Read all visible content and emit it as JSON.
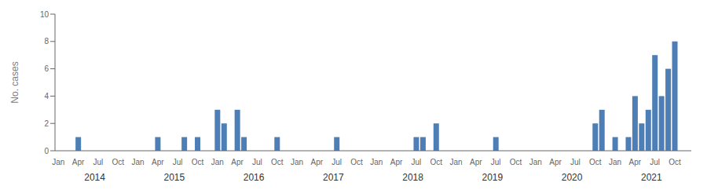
{
  "chart_data": {
    "type": "bar",
    "ylabel": "No. cases",
    "color": "#4d7eb5",
    "ylim": [
      0,
      10
    ],
    "yticks": [
      0,
      2,
      4,
      6,
      8,
      10
    ],
    "grid": false,
    "categories": [
      "Jan",
      null,
      null,
      "Apr",
      null,
      null,
      "Jul",
      null,
      null,
      "Oct",
      null,
      null,
      "Jan",
      null,
      null,
      "Apr",
      null,
      null,
      "Jul",
      null,
      null,
      "Oct",
      null,
      null,
      "Jan",
      null,
      null,
      "Apr",
      null,
      null,
      "Jul",
      null,
      null,
      "Oct",
      null,
      null,
      "Jan",
      null,
      null,
      "Apr",
      null,
      null,
      "Jul",
      null,
      null,
      "Oct",
      null,
      null,
      "Jan",
      null,
      null,
      "Apr",
      null,
      null,
      "Jul",
      null,
      null,
      "Oct",
      null,
      null,
      "Jan",
      null,
      null,
      "Apr",
      null,
      null,
      "Jul",
      null,
      null,
      "Oct",
      null,
      null,
      "Jan",
      null,
      null,
      "Apr",
      null,
      null,
      "Jul",
      null,
      null,
      "Oct",
      null,
      null,
      "Jan",
      null,
      null,
      "Apr",
      null,
      null,
      "Jul",
      null,
      null,
      "Oct",
      null,
      null
    ],
    "values": [
      0,
      0,
      0,
      1,
      0,
      0,
      0,
      0,
      0,
      0,
      0,
      0,
      0,
      0,
      0,
      1,
      0,
      0,
      0,
      1,
      0,
      1,
      0,
      0,
      3,
      2,
      0,
      3,
      1,
      0,
      0,
      0,
      0,
      1,
      0,
      0,
      0,
      0,
      0,
      0,
      0,
      0,
      1,
      0,
      0,
      0,
      0,
      0,
      0,
      0,
      0,
      0,
      0,
      0,
      1,
      1,
      0,
      2,
      0,
      0,
      0,
      0,
      0,
      0,
      0,
      0,
      1,
      0,
      0,
      0,
      0,
      0,
      0,
      0,
      0,
      0,
      0,
      0,
      0,
      0,
      0,
      2,
      3,
      0,
      1,
      0,
      1,
      4,
      2,
      3,
      7,
      4,
      6,
      8,
      0,
      0
    ],
    "annotations": [
      "2014",
      "2015",
      "2016",
      "2017",
      "2018",
      "2019",
      "2020",
      "2021"
    ]
  }
}
